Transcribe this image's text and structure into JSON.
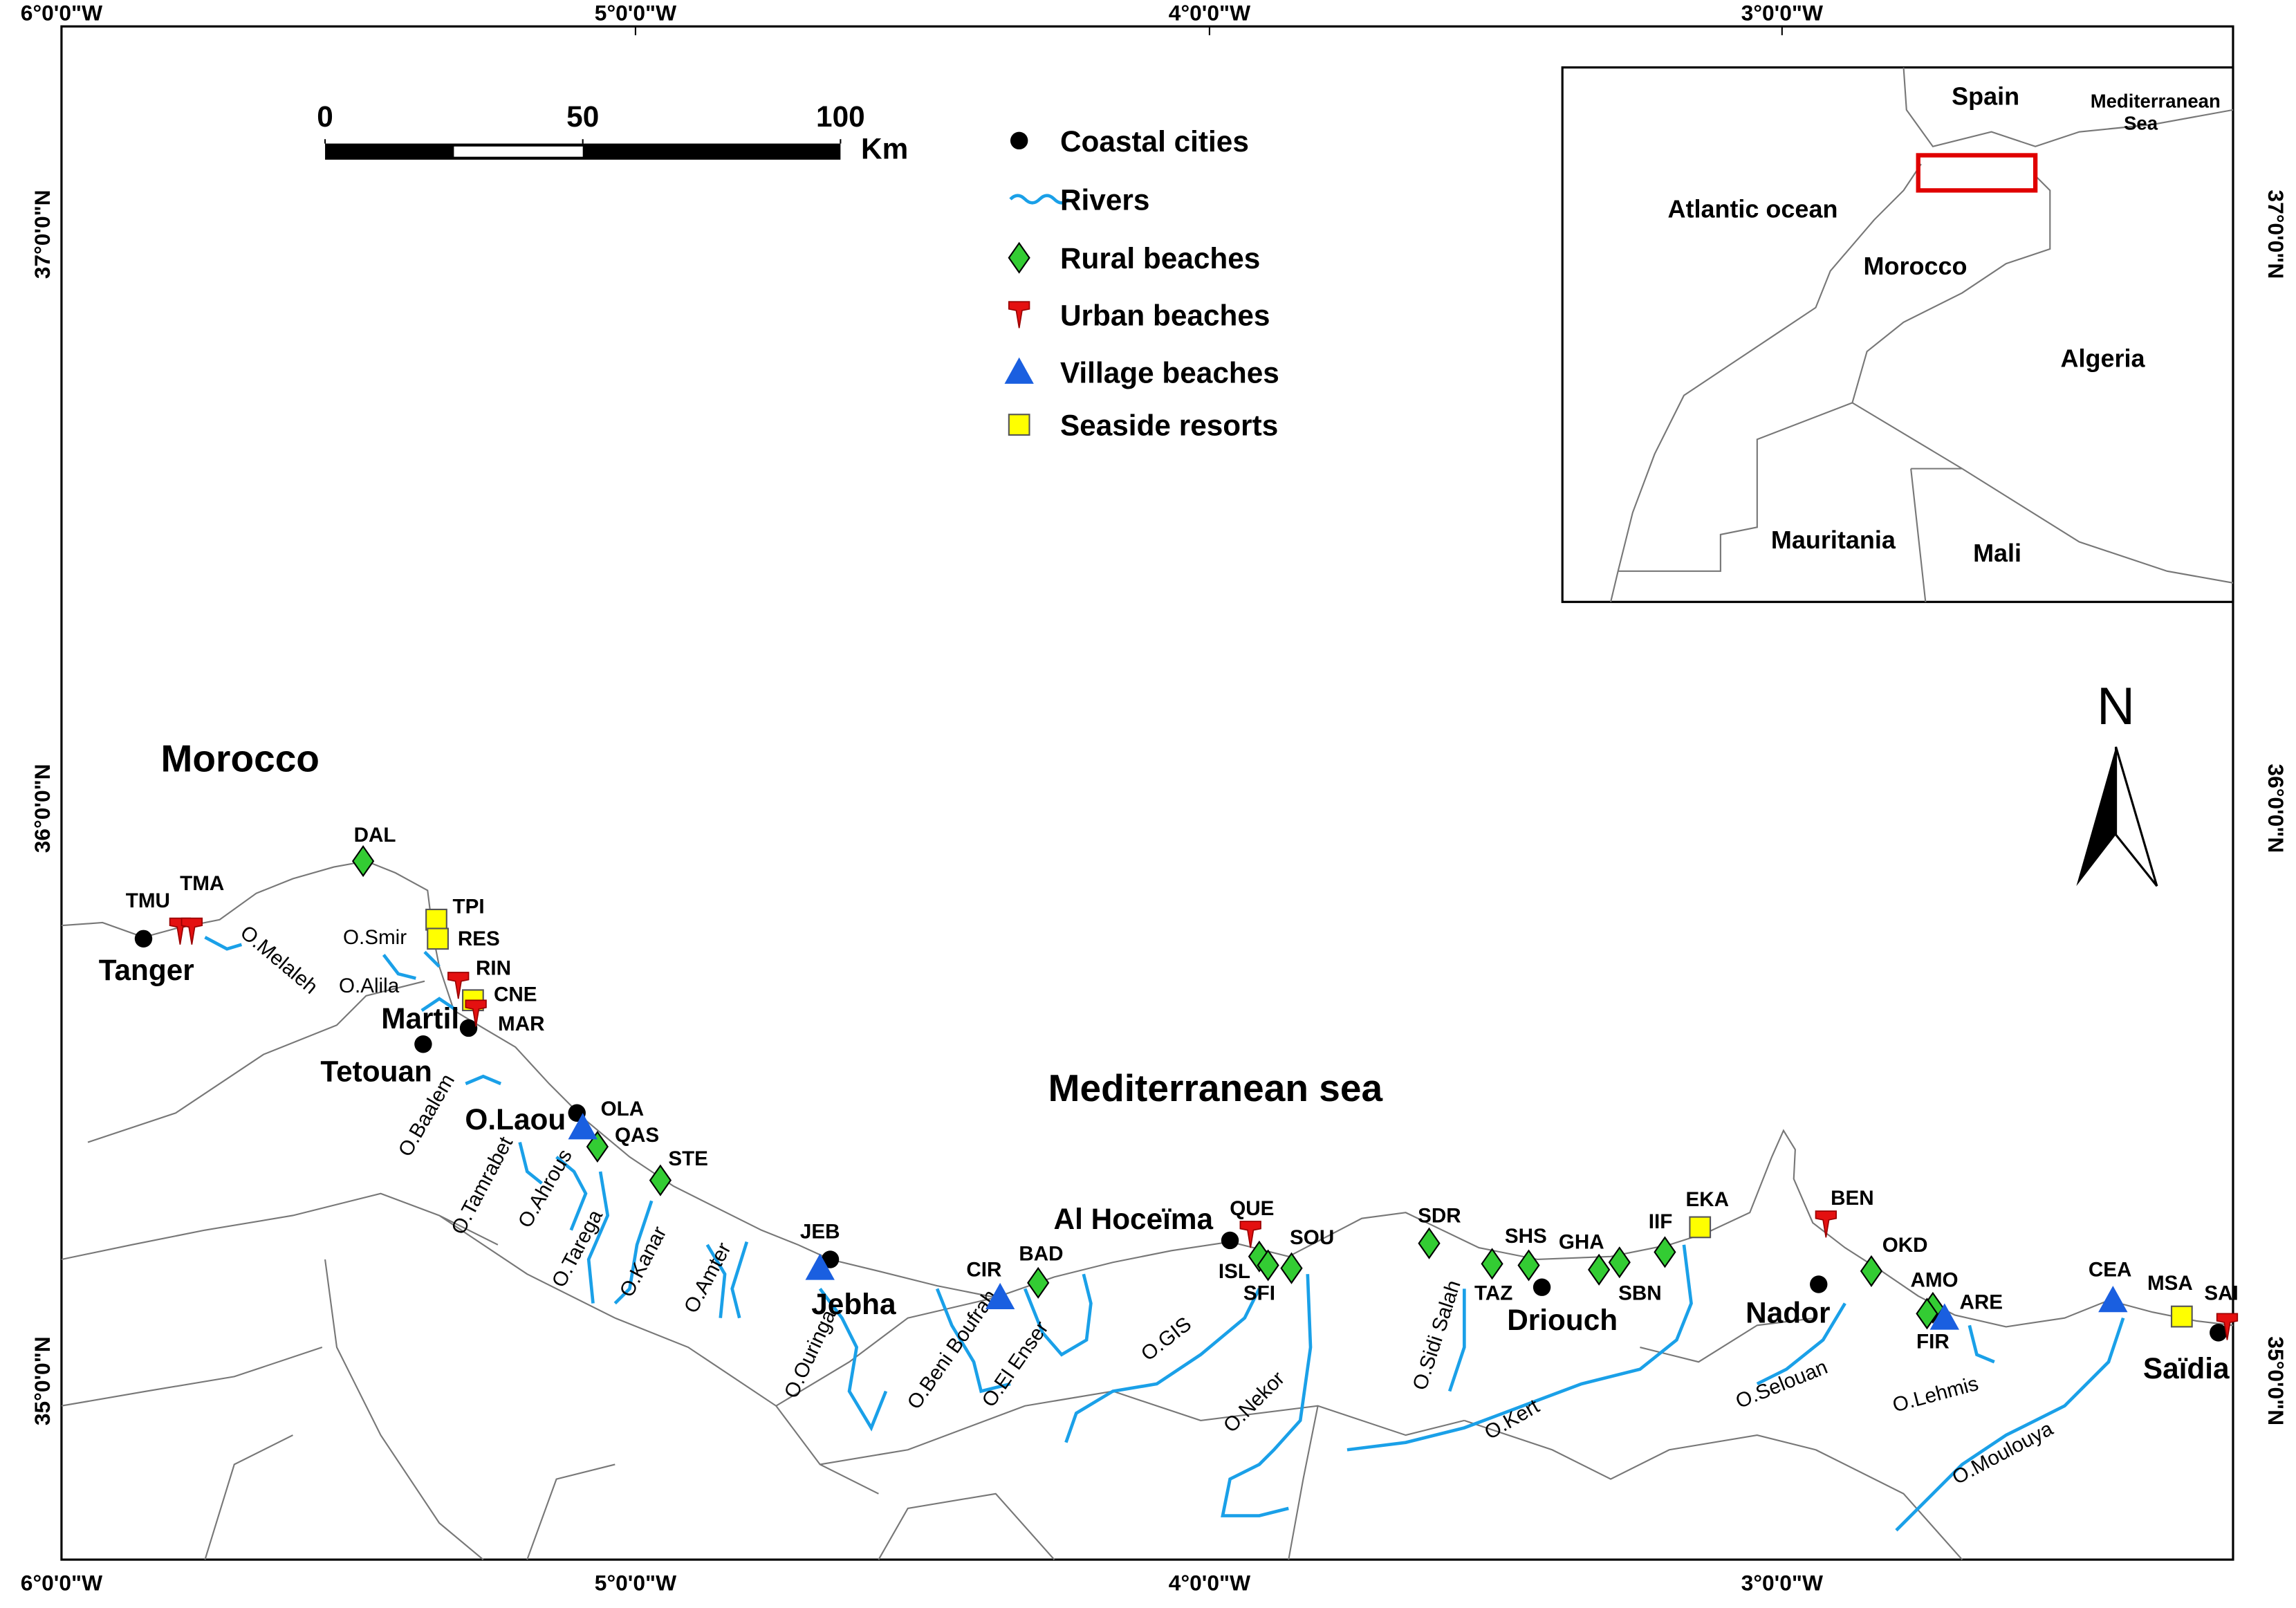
{
  "map": {
    "lon_labels": [
      "6°0'0\"W",
      "5°0'0\"W",
      "4°0'0\"W",
      "3°0'0\"W"
    ],
    "lat_labels": [
      "37°0'0\"N",
      "36°0'0\"N",
      "35°0'0\"N"
    ],
    "scale_bar": {
      "ticks": [
        0,
        50,
        100
      ],
      "unit": "Km"
    },
    "legend": [
      {
        "label": "Coastal cities",
        "items": [
          "Tanger",
          "Tetouan",
          "Martil",
          "O.Laou",
          "Jebha",
          "Al Hoceïma",
          "Driouch",
          "Nador",
          "Saïdia"
        ]
      },
      {
        "label": "Rivers",
        "items": [
          "O.Melaleh",
          "O.Smir",
          "O.Alila",
          "O.Baalem",
          "O.Tamrabet",
          "O.Ahrous",
          "O.Tarega",
          "O.Kanar",
          "O.Amter",
          "O.Ouringa",
          "O.Beni Boufrah",
          "O.El Enser",
          "O.GIS",
          "O.Nekor",
          "O.Sidi Salah",
          "O.Kert",
          "O.Selouan",
          "O.Lehmis",
          "O.Moulouya"
        ]
      },
      {
        "label": "Rural beaches",
        "items": [
          "DAL",
          "QAS",
          "STE",
          "BAD",
          "ISL",
          "SFI",
          "SOU",
          "SDR",
          "TAZ",
          "SHS",
          "GHA",
          "SBN",
          "IIF",
          "OKD",
          "AMO",
          "FIR"
        ]
      },
      {
        "label": "Urban beaches",
        "items": [
          "TMU",
          "TMA",
          "RIN",
          "MAR",
          "QUE",
          "BEN",
          "SAI"
        ]
      },
      {
        "label": "Village beaches",
        "items": [
          "OLA",
          "JEB",
          "CIR",
          "ARE",
          "CEA"
        ]
      },
      {
        "label": "Seaside resorts",
        "items": [
          "TPI",
          "RES",
          "CNE",
          "EKA",
          "MSA"
        ]
      }
    ],
    "country_label": "Morocco",
    "sea_label": "Mediterranean sea",
    "north": "N",
    "inset": {
      "labels": [
        "Spain",
        "Atlantic ocean",
        "Morocco",
        "Algeria",
        "Mauritania",
        "Mali"
      ],
      "sea": [
        "Mediterranean",
        "Sea"
      ]
    }
  }
}
